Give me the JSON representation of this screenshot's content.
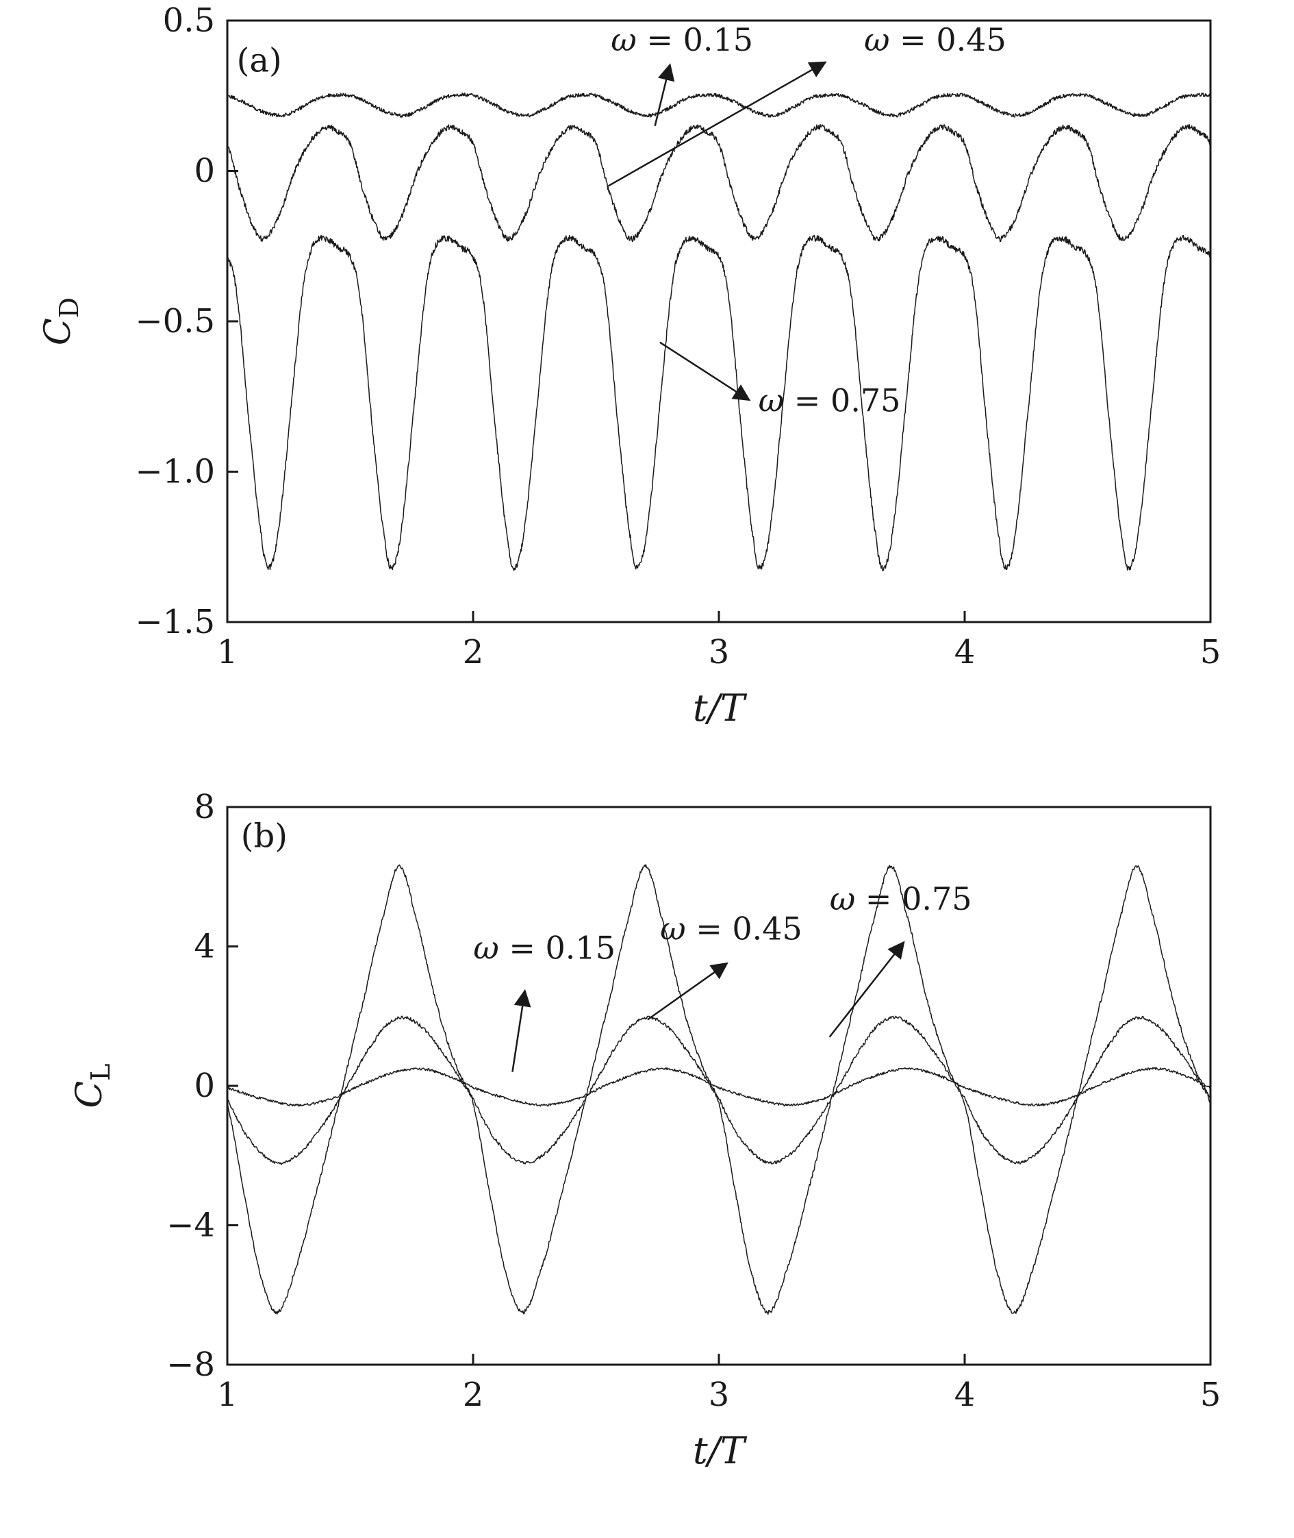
{
  "figure": {
    "background_color": "#ffffff",
    "line_color": "#1a1a1a",
    "description": "Two stacked line charts: (a) drag coefficient CD and (b) lift coefficient CL versus dimensionless time t/T for three oscillation frequencies"
  },
  "chart_data": [
    {
      "panel": "a",
      "panel_label": "(a)",
      "type": "line",
      "xlabel": "t/T",
      "ylabel_main": "C",
      "ylabel_sub": "D",
      "xlim": [
        1,
        5
      ],
      "ylim": [
        -1.5,
        0.5
      ],
      "grid": false,
      "xticks": [
        1,
        2,
        3,
        4,
        5
      ],
      "xtick_labels": [
        "1",
        "2",
        "3",
        "4",
        "5"
      ],
      "yticks": [
        0.5,
        0,
        -0.5,
        -1,
        -1.5
      ],
      "ytick_labels": [
        "0.5",
        "0",
        "−0.5",
        "−1.0",
        "−1.5"
      ],
      "panel_label_pos": {
        "x": 1.13,
        "y": 0.33
      },
      "series": [
        {
          "name": "ω = 0.15",
          "period": 0.5,
          "noise": 0.006,
          "cycle_points": [
            [
              0,
              0.25
            ],
            [
              0.15,
              0.225
            ],
            [
              0.3,
              0.195
            ],
            [
              0.45,
              0.185
            ],
            [
              0.6,
              0.21
            ],
            [
              0.75,
              0.243
            ],
            [
              0.88,
              0.252
            ],
            [
              1,
              0.25
            ]
          ]
        },
        {
          "name": "ω = 0.45",
          "period": 0.5,
          "noise": 0.009,
          "cycle_points": [
            [
              0,
              0.09
            ],
            [
              0.1,
              -0.06
            ],
            [
              0.22,
              -0.19
            ],
            [
              0.3,
              -0.225
            ],
            [
              0.42,
              -0.15
            ],
            [
              0.55,
              0
            ],
            [
              0.68,
              0.1
            ],
            [
              0.8,
              0.145
            ],
            [
              0.9,
              0.13
            ],
            [
              1,
              0.09
            ]
          ]
        },
        {
          "name": "ω = 0.75",
          "period": 0.5,
          "noise": 0.01,
          "cycle_points": [
            [
              0,
              -0.285
            ],
            [
              0.08,
              -0.42
            ],
            [
              0.18,
              -0.85
            ],
            [
              0.28,
              -1.22
            ],
            [
              0.34,
              -1.32
            ],
            [
              0.42,
              -1.18
            ],
            [
              0.52,
              -0.78
            ],
            [
              0.62,
              -0.38
            ],
            [
              0.7,
              -0.245
            ],
            [
              0.8,
              -0.225
            ],
            [
              0.9,
              -0.255
            ],
            [
              1,
              -0.285
            ]
          ]
        }
      ],
      "annotations": [
        {
          "label": "ω = 0.15",
          "label_x": 2.85,
          "label_y": 0.4,
          "arrow": {
            "x1": 2.74,
            "y1": 0.15,
            "x2": 2.8,
            "y2": 0.35
          }
        },
        {
          "label": "ω = 0.45",
          "label_x": 3.88,
          "label_y": 0.4,
          "arrow": {
            "x1": 2.55,
            "y1": -0.05,
            "x2": 3.43,
            "y2": 0.36
          }
        },
        {
          "label": "ω = 0.75",
          "label_x": 3.45,
          "label_y": -0.8,
          "arrow": {
            "x1": 2.76,
            "y1": -0.57,
            "x2": 3.12,
            "y2": -0.76
          }
        }
      ]
    },
    {
      "panel": "b",
      "panel_label": "(b)",
      "type": "line",
      "xlabel": "t/T",
      "ylabel_main": "C",
      "ylabel_sub": "L",
      "xlim": [
        1,
        5
      ],
      "ylim": [
        -8,
        8
      ],
      "grid": false,
      "xticks": [
        1,
        2,
        3,
        4,
        5
      ],
      "xtick_labels": [
        "1",
        "2",
        "3",
        "4",
        "5"
      ],
      "yticks": [
        8,
        4,
        0,
        -4,
        -8
      ],
      "ytick_labels": [
        "8",
        "4",
        "0",
        "−4",
        "−8"
      ],
      "panel_label_pos": {
        "x": 1.15,
        "y": 6.85
      },
      "series": [
        {
          "name": "ω = 0.15",
          "period": 1,
          "noise": 0.035,
          "cycle_points": [
            [
              0,
              -0.05
            ],
            [
              0.12,
              -0.33
            ],
            [
              0.28,
              -0.55
            ],
            [
              0.42,
              -0.38
            ],
            [
              0.55,
              0.05
            ],
            [
              0.7,
              0.42
            ],
            [
              0.8,
              0.48
            ],
            [
              0.9,
              0.28
            ],
            [
              1,
              -0.05
            ]
          ]
        },
        {
          "name": "ω = 0.45",
          "period": 1,
          "noise": 0.045,
          "cycle_points": [
            [
              0,
              -0.35
            ],
            [
              0.08,
              -1.45
            ],
            [
              0.18,
              -2.15
            ],
            [
              0.26,
              -2.1
            ],
            [
              0.36,
              -1.4
            ],
            [
              0.48,
              -0.1
            ],
            [
              0.6,
              1.3
            ],
            [
              0.68,
              1.9
            ],
            [
              0.76,
              1.85
            ],
            [
              0.86,
              1.1
            ],
            [
              1,
              -0.35
            ]
          ]
        },
        {
          "name": "ω = 0.75",
          "period": 1,
          "noise": 0.055,
          "cycle_points": [
            [
              0,
              -0.5
            ],
            [
              0.06,
              -2.8
            ],
            [
              0.13,
              -5.3
            ],
            [
              0.2,
              -6.5
            ],
            [
              0.27,
              -5.4
            ],
            [
              0.36,
              -3.1
            ],
            [
              0.46,
              -0.3
            ],
            [
              0.56,
              2.6
            ],
            [
              0.64,
              5.0
            ],
            [
              0.7,
              6.3
            ],
            [
              0.76,
              5.0
            ],
            [
              0.85,
              2.4
            ],
            [
              0.93,
              0.6
            ],
            [
              1,
              -0.5
            ]
          ]
        }
      ],
      "annotations": [
        {
          "label": "ω = 0.15",
          "label_x": 2.29,
          "label_y": 3.65,
          "arrow": {
            "x1": 2.16,
            "y1": 0.4,
            "x2": 2.21,
            "y2": 2.7
          }
        },
        {
          "label": "ω = 0.45",
          "label_x": 3.05,
          "label_y": 4.2,
          "arrow": {
            "x1": 2.71,
            "y1": 1.9,
            "x2": 3.03,
            "y2": 3.5
          }
        },
        {
          "label": "ω = 0.75",
          "label_x": 3.74,
          "label_y": 5.05,
          "arrow": {
            "x1": 3.45,
            "y1": 1.4,
            "x2": 3.75,
            "y2": 4.1
          }
        }
      ]
    }
  ]
}
